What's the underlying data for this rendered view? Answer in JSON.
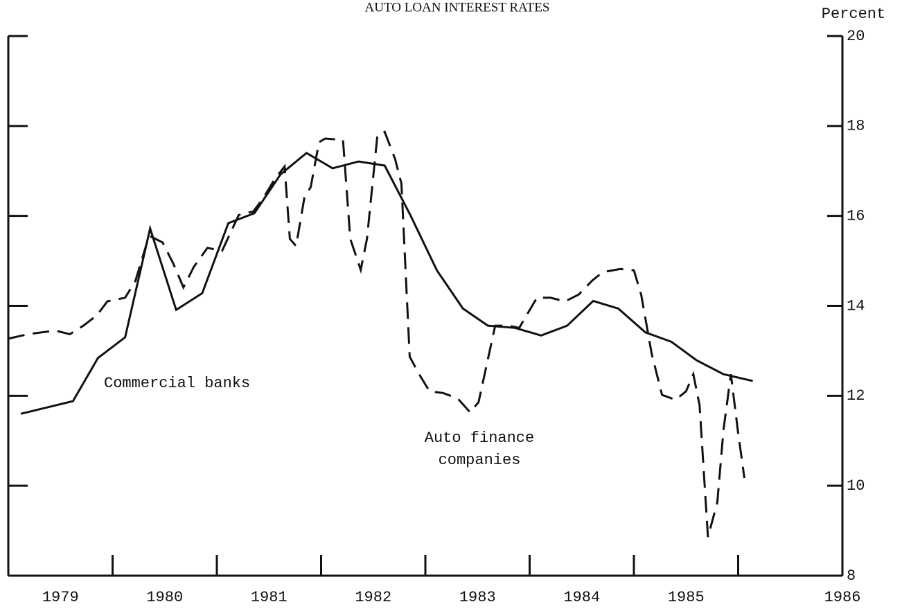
{
  "chart_data": {
    "type": "line",
    "title": "AUTO LOAN INTEREST RATES",
    "y_axis_label": "Percent",
    "xlim": [
      1979,
      1987
    ],
    "xticks": [
      1980,
      1981,
      1982,
      1983,
      1984,
      1985,
      1986
    ],
    "xtick_labels": [
      {
        "value": 1979.5,
        "label": "1979"
      },
      {
        "value": 1980.5,
        "label": "1980"
      },
      {
        "value": 1981.5,
        "label": "1981"
      },
      {
        "value": 1982.5,
        "label": "1982"
      },
      {
        "value": 1983.5,
        "label": "1983"
      },
      {
        "value": 1984.5,
        "label": "1984"
      },
      {
        "value": 1985.5,
        "label": "1985"
      },
      {
        "value": 1987,
        "label": "1986"
      }
    ],
    "ylim": [
      8,
      20
    ],
    "yticks": [
      8,
      10,
      12,
      14,
      16,
      18,
      20
    ],
    "annotations": [
      "Commercial banks",
      "Auto finance",
      "companies"
    ],
    "series": [
      {
        "name": "Commercial banks",
        "color": "#111",
        "dashed": false,
        "x": [
          1979.12,
          1979.62,
          1979.86,
          1980.12,
          1980.36,
          1980.61,
          1980.86,
          1981.11,
          1981.36,
          1981.61,
          1981.86,
          1982.11,
          1982.36,
          1982.61,
          1982.86,
          1983.11,
          1983.36,
          1983.6,
          1983.86,
          1984.11,
          1984.36,
          1984.61,
          1984.85,
          1985.11,
          1985.36,
          1985.6,
          1985.86,
          1986.14
        ],
        "values": [
          11.6,
          11.88,
          12.84,
          13.3,
          15.72,
          13.91,
          14.28,
          15.84,
          16.06,
          16.92,
          17.4,
          17.06,
          17.21,
          17.12,
          16.0,
          14.79,
          13.94,
          13.56,
          13.51,
          13.34,
          13.56,
          14.11,
          13.94,
          13.41,
          13.2,
          12.79,
          12.48,
          12.33
        ]
      },
      {
        "name": "Auto finance companies",
        "color": "#111",
        "dashed": true,
        "x": [
          1979.0,
          1979.19,
          1979.35,
          1979.45,
          1979.59,
          1979.72,
          1979.85,
          1979.95,
          1980.12,
          1980.22,
          1980.35,
          1980.48,
          1980.58,
          1980.68,
          1980.78,
          1980.91,
          1981.05,
          1981.21,
          1981.35,
          1981.45,
          1981.55,
          1981.65,
          1981.7,
          1981.76,
          1981.84,
          1981.9,
          1981.98,
          1982.04,
          1982.21,
          1982.28,
          1982.38,
          1982.44,
          1982.54,
          1982.61,
          1982.71,
          1982.77,
          1982.85,
          1982.94,
          1983.04,
          1983.17,
          1983.31,
          1983.43,
          1983.51,
          1983.67,
          1983.8,
          1983.9,
          1984.07,
          1984.2,
          1984.34,
          1984.47,
          1984.6,
          1984.7,
          1984.87,
          1985.0,
          1985.07,
          1985.17,
          1985.27,
          1985.4,
          1985.5,
          1985.57,
          1985.63,
          1985.71,
          1985.8,
          1985.86,
          1985.93,
          1986.0,
          1986.06
        ],
        "values": [
          13.27,
          13.37,
          13.42,
          13.45,
          13.37,
          13.56,
          13.79,
          14.1,
          14.18,
          14.56,
          15.56,
          15.41,
          14.95,
          14.41,
          14.87,
          15.29,
          15.22,
          16.02,
          16.1,
          16.41,
          16.8,
          17.1,
          15.49,
          15.33,
          16.41,
          16.64,
          17.64,
          17.72,
          17.69,
          15.49,
          14.8,
          15.49,
          17.8,
          17.87,
          17.26,
          16.72,
          12.87,
          12.48,
          12.1,
          12.06,
          11.94,
          11.63,
          11.86,
          13.56,
          13.56,
          13.51,
          14.18,
          14.18,
          14.1,
          14.25,
          14.56,
          14.75,
          14.82,
          14.79,
          14.25,
          12.94,
          12.02,
          11.91,
          12.1,
          12.48,
          11.79,
          8.86,
          9.63,
          11.25,
          12.48,
          11.17,
          10.17
        ]
      }
    ]
  }
}
